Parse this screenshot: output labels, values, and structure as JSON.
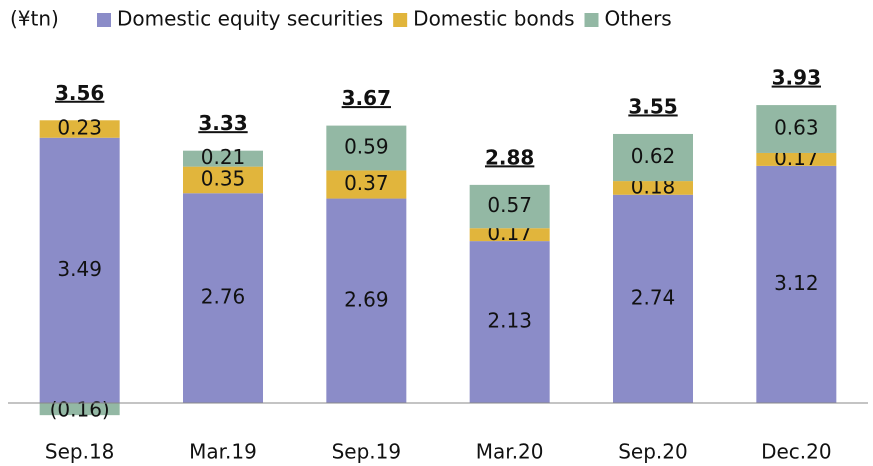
{
  "chart_data": {
    "type": "stacked_bar",
    "unit": "(¥tn)",
    "categories": [
      "Sep.18",
      "Mar.19",
      "Sep.19",
      "Mar.20",
      "Sep.20",
      "Dec.20"
    ],
    "series": [
      {
        "name": "Domestic equity securities",
        "color": "#8b8cc8",
        "values": [
          3.49,
          2.76,
          2.69,
          2.13,
          2.74,
          3.12
        ]
      },
      {
        "name": "Domestic bonds",
        "color": "#e1b53c",
        "values": [
          0.23,
          0.35,
          0.37,
          0.17,
          0.18,
          0.17
        ]
      },
      {
        "name": "Others",
        "color": "#93b8a4",
        "values": [
          -0.16,
          0.21,
          0.59,
          0.57,
          0.62,
          0.63
        ],
        "value_labels": [
          "(0.16)",
          "0.21",
          "0.59",
          "0.57",
          "0.62",
          "0.63"
        ]
      }
    ],
    "totals": [
      3.56,
      3.33,
      3.67,
      2.88,
      3.55,
      3.93
    ],
    "ylim": [
      -0.5,
      4.5
    ]
  }
}
